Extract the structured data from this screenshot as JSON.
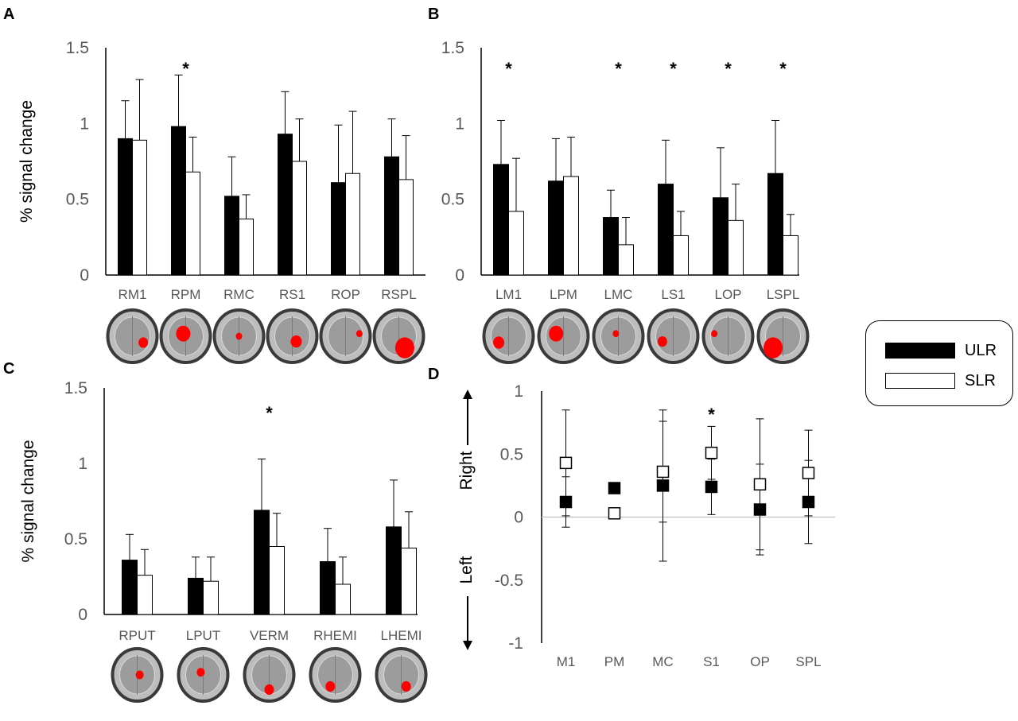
{
  "panels": {
    "A": "A",
    "B": "B",
    "C": "C",
    "D": "D"
  },
  "legend": [
    {
      "label": "ULR",
      "fill": "#000000"
    },
    {
      "label": "SLR",
      "fill": "#ffffff"
    }
  ],
  "colors": {
    "ulr": "#000000",
    "slr": "#ffffff",
    "axis": "#000000",
    "tick_text": "#595959",
    "roi": "#ff0000"
  },
  "chart_data": [
    {
      "panel": "A",
      "type": "bar",
      "ylabel": "% signal change",
      "ylim": [
        0,
        1.5
      ],
      "yticks": [
        "0",
        "0.5",
        "1",
        "1.5"
      ],
      "categories": [
        "RM1",
        "RPM",
        "RMC",
        "RS1",
        "ROP",
        "RSPL"
      ],
      "series": [
        {
          "name": "ULR",
          "values": [
            0.9,
            0.98,
            0.52,
            0.93,
            0.61,
            0.78
          ],
          "err": [
            0.25,
            0.34,
            0.26,
            0.28,
            0.38,
            0.25
          ]
        },
        {
          "name": "SLR",
          "values": [
            0.89,
            0.68,
            0.37,
            0.75,
            0.67,
            0.63
          ],
          "err": [
            0.4,
            0.23,
            0.16,
            0.28,
            0.41,
            0.29
          ]
        }
      ],
      "significant": [
        "RPM"
      ]
    },
    {
      "panel": "B",
      "type": "bar",
      "ylabel": "",
      "ylim": [
        0,
        1.5
      ],
      "yticks": [
        "0",
        "0.5",
        "1",
        "1.5"
      ],
      "categories": [
        "LM1",
        "LPM",
        "LMC",
        "LS1",
        "LOP",
        "LSPL"
      ],
      "series": [
        {
          "name": "ULR",
          "values": [
            0.73,
            0.62,
            0.38,
            0.6,
            0.51,
            0.67
          ],
          "err": [
            0.29,
            0.28,
            0.18,
            0.29,
            0.33,
            0.35
          ]
        },
        {
          "name": "SLR",
          "values": [
            0.42,
            0.65,
            0.2,
            0.26,
            0.36,
            0.26
          ],
          "err": [
            0.35,
            0.26,
            0.18,
            0.16,
            0.24,
            0.14
          ]
        }
      ],
      "significant": [
        "LM1",
        "LMC",
        "LS1",
        "LOP",
        "LSPL"
      ]
    },
    {
      "panel": "C",
      "type": "bar",
      "ylabel": "% signal change",
      "ylim": [
        0,
        1.5
      ],
      "yticks": [
        "0",
        "0.5",
        "1",
        "1.5"
      ],
      "categories": [
        "RPUT",
        "LPUT",
        "VERM",
        "RHEMI",
        "LHEMI"
      ],
      "series": [
        {
          "name": "ULR",
          "values": [
            0.36,
            0.24,
            0.69,
            0.35,
            0.58
          ],
          "err": [
            0.17,
            0.14,
            0.34,
            0.22,
            0.31
          ]
        },
        {
          "name": "SLR",
          "values": [
            0.26,
            0.22,
            0.45,
            0.2,
            0.44
          ],
          "err": [
            0.17,
            0.16,
            0.22,
            0.18,
            0.24
          ]
        }
      ],
      "significant": [
        "VERM"
      ]
    },
    {
      "panel": "D",
      "type": "scatter",
      "ylabel_top": "Right",
      "ylabel_bottom": "Left",
      "ylim": [
        -1,
        1
      ],
      "yticks": [
        "1",
        "0.5",
        "0",
        "-0.5",
        "-1"
      ],
      "categories": [
        "M1",
        "PM",
        "MC",
        "S1",
        "OP",
        "SPL"
      ],
      "series": [
        {
          "name": "ULR",
          "values": [
            0.12,
            0.23,
            0.25,
            0.24,
            0.06,
            0.12
          ],
          "err": [
            0.2,
            0,
            0.6,
            0.22,
            0.36,
            0.33
          ]
        },
        {
          "name": "SLR",
          "values": [
            0.43,
            0.03,
            0.36,
            0.51,
            0.26,
            0.35
          ],
          "err": [
            0.42,
            0,
            0.4,
            0.21,
            0.52,
            0.34
          ]
        }
      ],
      "significant": [
        "S1"
      ]
    }
  ]
}
